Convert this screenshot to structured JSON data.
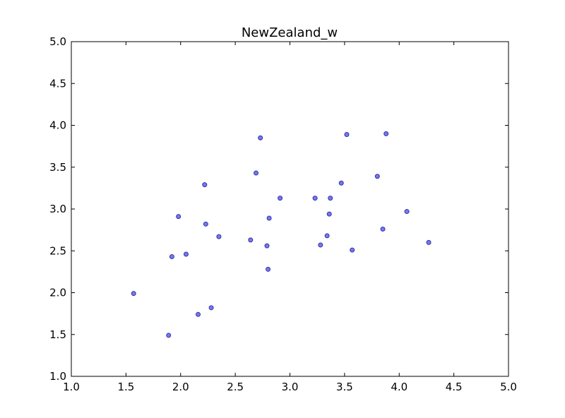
{
  "chart_data": {
    "type": "scatter",
    "title": "NewZealand_w",
    "xlabel": "",
    "ylabel": "",
    "xlim": [
      1.0,
      5.0
    ],
    "ylim": [
      1.0,
      5.0
    ],
    "xticks": [
      "1.0",
      "1.5",
      "2.0",
      "2.5",
      "3.0",
      "3.5",
      "4.0",
      "4.5",
      "5.0"
    ],
    "yticks": [
      "1.0",
      "1.5",
      "2.0",
      "2.5",
      "3.0",
      "3.5",
      "4.0",
      "4.5",
      "5.0"
    ],
    "grid": false,
    "marker_color": "#7777ee",
    "marker_edge_color": "#3333aa",
    "points": [
      {
        "x": 1.57,
        "y": 1.99
      },
      {
        "x": 1.89,
        "y": 1.49
      },
      {
        "x": 1.92,
        "y": 2.43
      },
      {
        "x": 1.98,
        "y": 2.91
      },
      {
        "x": 2.05,
        "y": 2.46
      },
      {
        "x": 2.16,
        "y": 1.74
      },
      {
        "x": 2.22,
        "y": 3.29
      },
      {
        "x": 2.23,
        "y": 2.82
      },
      {
        "x": 2.28,
        "y": 1.82
      },
      {
        "x": 2.35,
        "y": 2.67
      },
      {
        "x": 2.64,
        "y": 2.63
      },
      {
        "x": 2.69,
        "y": 3.43
      },
      {
        "x": 2.73,
        "y": 3.85
      },
      {
        "x": 2.79,
        "y": 2.56
      },
      {
        "x": 2.8,
        "y": 2.28
      },
      {
        "x": 2.81,
        "y": 2.89
      },
      {
        "x": 2.91,
        "y": 3.13
      },
      {
        "x": 3.23,
        "y": 3.13
      },
      {
        "x": 3.28,
        "y": 2.57
      },
      {
        "x": 3.34,
        "y": 2.68
      },
      {
        "x": 3.36,
        "y": 2.94
      },
      {
        "x": 3.37,
        "y": 3.13
      },
      {
        "x": 3.47,
        "y": 3.31
      },
      {
        "x": 3.52,
        "y": 3.89
      },
      {
        "x": 3.57,
        "y": 2.51
      },
      {
        "x": 3.8,
        "y": 3.39
      },
      {
        "x": 3.85,
        "y": 2.76
      },
      {
        "x": 3.88,
        "y": 3.9
      },
      {
        "x": 4.07,
        "y": 2.97
      },
      {
        "x": 4.27,
        "y": 2.6
      }
    ]
  }
}
